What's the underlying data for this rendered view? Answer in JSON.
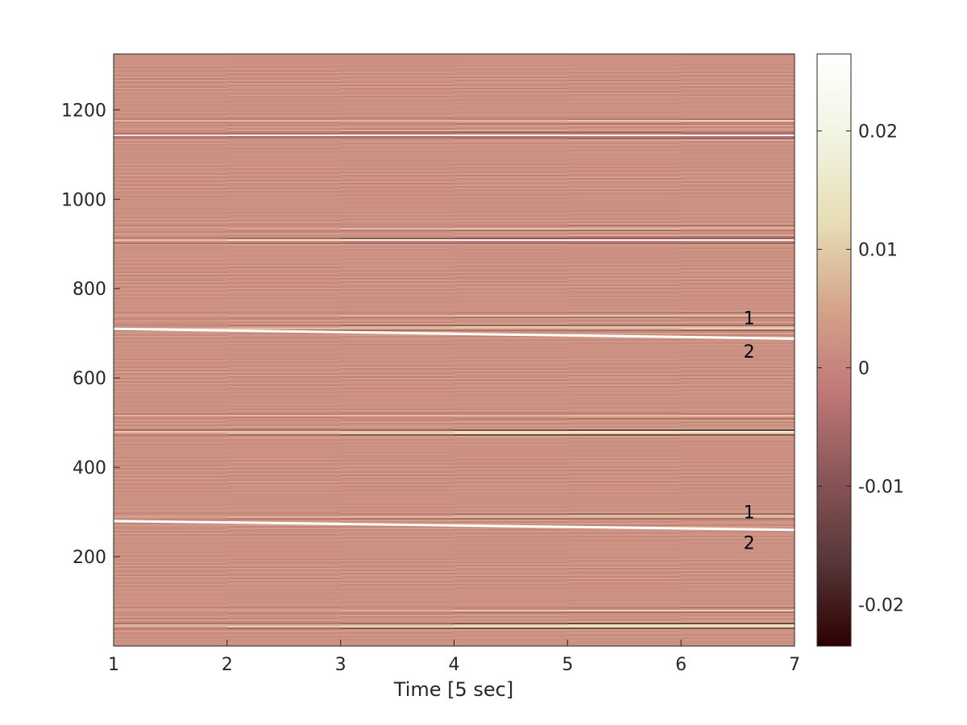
{
  "chart_data": {
    "type": "heatmap",
    "title": "",
    "xlabel": "Time [5 sec]",
    "ylabel": "",
    "xlim": [
      1,
      7
    ],
    "ylim": [
      0,
      1325
    ],
    "x_ticks": [
      1,
      2,
      3,
      4,
      5,
      6,
      7
    ],
    "y_ticks": [
      200,
      400,
      600,
      800,
      1000,
      1200
    ],
    "time_columns": [
      1,
      2,
      3,
      4,
      5,
      6
    ],
    "colorbar": {
      "range": [
        -0.0235,
        0.0265
      ],
      "ticks": [
        {
          "value": 0.02,
          "label": "0.02"
        },
        {
          "value": 0.01,
          "label": "0.01"
        },
        {
          "value": 0,
          "label": "0"
        },
        {
          "value": -0.01,
          "label": "-0.01"
        },
        {
          "value": -0.02,
          "label": "-0.02"
        }
      ],
      "colormap": [
        "#2e0000",
        "#573738",
        "#8a5658",
        "#c07878",
        "#d4a48a",
        "#e7ddb4",
        "#f1f3e1",
        "#ffffff"
      ]
    },
    "background_value": 0.002,
    "bands": [
      {
        "y": 45,
        "amp": [
          0.01,
          0.013,
          0.016,
          0.019,
          0.021,
          0.022
        ]
      },
      {
        "y": 80,
        "amp": [
          0.004,
          0.005,
          0.006,
          0.008,
          0.009,
          0.009
        ]
      },
      {
        "y": 290,
        "amp": [
          0.005,
          0.006,
          0.007,
          0.009,
          0.011,
          0.012
        ]
      },
      {
        "y": 478,
        "amp": [
          0.011,
          0.014,
          0.017,
          0.021,
          0.022,
          0.022
        ]
      },
      {
        "y": 515,
        "amp": [
          0.004,
          0.005,
          0.007,
          0.008,
          0.009,
          0.009
        ]
      },
      {
        "y": 712,
        "amp": [
          0.006,
          0.008,
          0.01,
          0.012,
          0.014,
          0.016
        ]
      },
      {
        "y": 740,
        "amp": [
          0.004,
          0.005,
          0.006,
          0.007,
          0.008,
          0.009
        ]
      },
      {
        "y": 908,
        "amp": [
          0.01,
          0.013,
          0.016,
          0.019,
          0.021,
          0.022
        ]
      },
      {
        "y": 935,
        "amp": [
          0.004,
          0.005,
          0.006,
          0.007,
          0.008,
          0.008
        ]
      },
      {
        "y": 1143,
        "amp": [
          0.012,
          0.015,
          0.018,
          0.021,
          0.022,
          0.022
        ]
      },
      {
        "y": 1175,
        "amp": [
          0.004,
          0.006,
          0.007,
          0.008,
          0.009,
          0.009
        ]
      }
    ],
    "series": [
      {
        "x": [
          1,
          7
        ],
        "y": [
          710,
          688
        ]
      },
      {
        "x": [
          1,
          7
        ],
        "y": [
          280,
          260
        ]
      }
    ],
    "annotations": [
      {
        "text": "1",
        "x": 6.55,
        "y": 735
      },
      {
        "text": "2",
        "x": 6.55,
        "y": 660
      },
      {
        "text": "1",
        "x": 6.55,
        "y": 300
      },
      {
        "text": "2",
        "x": 6.55,
        "y": 232
      }
    ]
  }
}
